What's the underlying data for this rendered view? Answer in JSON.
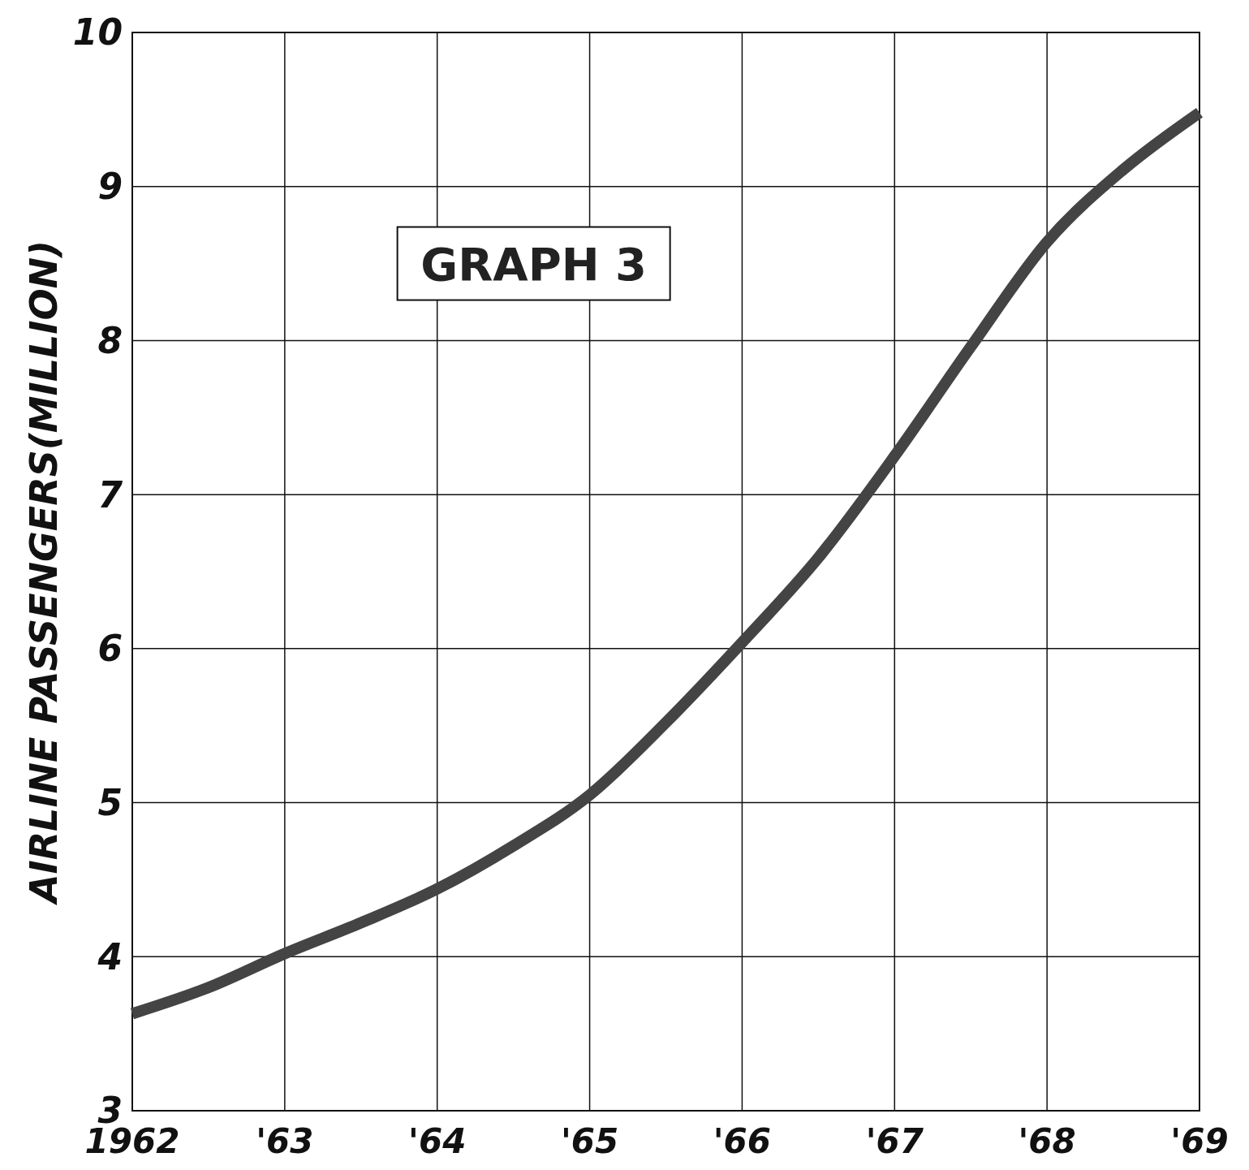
{
  "chart_data": {
    "type": "line",
    "ylabel": "AIRLINE PASSENGERS(MILLION)",
    "annotations": [
      "GRAPH 3"
    ],
    "x": [
      1962,
      1962.5,
      1963,
      1963.5,
      1964,
      1964.5,
      1965,
      1965.5,
      1966,
      1966.5,
      1967,
      1967.5,
      1968,
      1968.5,
      1969
    ],
    "series": [
      {
        "color": "#444444",
        "values": [
          3.63,
          3.8,
          4.02,
          4.22,
          4.44,
          4.72,
          5.05,
          5.52,
          6.04,
          6.59,
          7.25,
          7.96,
          8.64,
          9.11,
          9.48
        ]
      }
    ],
    "xlim": [
      1962,
      1969
    ],
    "xticks": [
      {
        "value": 1962,
        "label": "1962"
      },
      {
        "value": 1963,
        "label": "'63"
      },
      {
        "value": 1964,
        "label": "'64"
      },
      {
        "value": 1965,
        "label": "'65"
      },
      {
        "value": 1966,
        "label": "'66"
      },
      {
        "value": 1967,
        "label": "'67"
      },
      {
        "value": 1968,
        "label": "'68"
      },
      {
        "value": 1969,
        "label": "'69"
      }
    ],
    "ylim": [
      3,
      10
    ],
    "yticks": [
      3,
      4,
      5,
      6,
      7,
      8,
      9,
      10
    ],
    "grid": true,
    "line_style": "solid",
    "marker": "none"
  }
}
